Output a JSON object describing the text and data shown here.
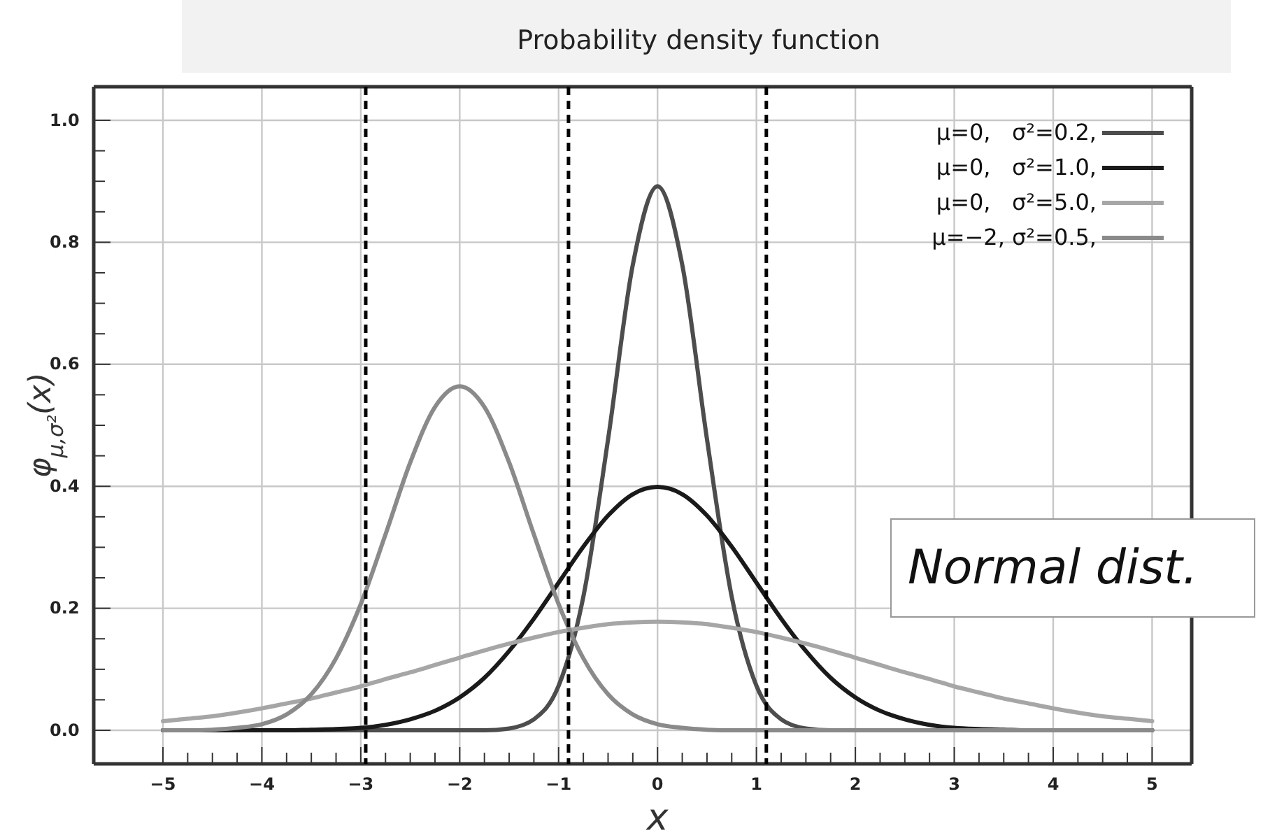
{
  "chart_data": {
    "type": "line",
    "title": "Probability density function",
    "xlabel": "x",
    "ylabel": "φ$_{μ,σ²}$(x)",
    "annotations": [
      "Normal dist."
    ],
    "x": [
      -5,
      -4.75,
      -4.5,
      -4.25,
      -4,
      -3.75,
      -3.5,
      -3.25,
      -3,
      -2.75,
      -2.5,
      -2.25,
      -2,
      -1.75,
      -1.5,
      -1.25,
      -1,
      -0.75,
      -0.5,
      -0.25,
      0,
      0.25,
      0.5,
      0.75,
      1,
      1.25,
      1.5,
      1.75,
      2,
      2.25,
      2.5,
      2.75,
      3,
      3.25,
      3.5,
      3.75,
      4,
      4.25,
      4.5,
      4.75,
      5
    ],
    "series": [
      {
        "name": "μ=0,   σ²=0.2,",
        "color": "#4d4d4d",
        "values": [
          0,
          0,
          0,
          0,
          0,
          0,
          0,
          0,
          0,
          0,
          0,
          0,
          0,
          0,
          0.003,
          0.018,
          0.073,
          0.219,
          0.477,
          0.763,
          0.892,
          0.763,
          0.477,
          0.219,
          0.073,
          0.018,
          0.003,
          0,
          0,
          0,
          0,
          0,
          0,
          0,
          0,
          0,
          0,
          0,
          0,
          0,
          0
        ]
      },
      {
        "name": "μ=0,   σ²=1.0,",
        "color": "#1a1a1a",
        "values": [
          0,
          0,
          0,
          0,
          0,
          0,
          0.001,
          0.002,
          0.004,
          0.009,
          0.018,
          0.032,
          0.054,
          0.086,
          0.13,
          0.183,
          0.242,
          0.301,
          0.352,
          0.387,
          0.399,
          0.387,
          0.352,
          0.301,
          0.242,
          0.183,
          0.13,
          0.086,
          0.054,
          0.032,
          0.018,
          0.009,
          0.004,
          0.002,
          0.001,
          0,
          0,
          0,
          0,
          0,
          0
        ]
      },
      {
        "name": "μ=0,   σ²=5.0,",
        "color": "#a6a6a6",
        "values": [
          0.015,
          0.019,
          0.023,
          0.029,
          0.036,
          0.044,
          0.052,
          0.062,
          0.072,
          0.084,
          0.095,
          0.107,
          0.119,
          0.131,
          0.142,
          0.152,
          0.161,
          0.168,
          0.174,
          0.177,
          0.178,
          0.177,
          0.174,
          0.168,
          0.161,
          0.152,
          0.142,
          0.131,
          0.119,
          0.107,
          0.095,
          0.084,
          0.072,
          0.062,
          0.052,
          0.044,
          0.036,
          0.029,
          0.023,
          0.019,
          0.015
        ]
      },
      {
        "name": "μ=−2, σ²=0.5,",
        "color": "#8a8a8a",
        "values": [
          0,
          0,
          0.001,
          0.004,
          0.01,
          0.026,
          0.059,
          0.118,
          0.207,
          0.321,
          0.439,
          0.53,
          0.564,
          0.53,
          0.439,
          0.321,
          0.207,
          0.118,
          0.059,
          0.026,
          0.01,
          0.004,
          0.001,
          0,
          0,
          0,
          0,
          0,
          0,
          0,
          0,
          0,
          0,
          0,
          0,
          0,
          0,
          0,
          0,
          0,
          0
        ]
      }
    ],
    "xlim": [
      -5.7,
      5.4
    ],
    "ylim": [
      -0.055,
      1.055
    ],
    "xticks": [
      {
        "value": -5,
        "label": "−5"
      },
      {
        "value": -4.75,
        "label": null
      },
      {
        "value": -4.5,
        "label": null
      },
      {
        "value": -4.25,
        "label": null
      },
      {
        "value": -4,
        "label": "−4"
      },
      {
        "value": -3.75,
        "label": null
      },
      {
        "value": -3.5,
        "label": null
      },
      {
        "value": -3.25,
        "label": null
      },
      {
        "value": -3,
        "label": "−3"
      },
      {
        "value": -2.75,
        "label": null
      },
      {
        "value": -2.5,
        "label": null
      },
      {
        "value": -2.25,
        "label": null
      },
      {
        "value": -2,
        "label": "−2"
      },
      {
        "value": -1.75,
        "label": null
      },
      {
        "value": -1.5,
        "label": null
      },
      {
        "value": -1.25,
        "label": null
      },
      {
        "value": -1,
        "label": "−1"
      },
      {
        "value": -0.75,
        "label": null
      },
      {
        "value": -0.5,
        "label": null
      },
      {
        "value": -0.25,
        "label": null
      },
      0,
      {
        "value": 0.25,
        "label": null
      },
      {
        "value": 0.5,
        "label": null
      },
      {
        "value": 0.75,
        "label": null
      },
      1,
      {
        "value": 1.25,
        "label": null
      },
      {
        "value": 1.5,
        "label": null
      },
      {
        "value": 1.75,
        "label": null
      },
      2,
      {
        "value": 2.25,
        "label": null
      },
      {
        "value": 2.5,
        "label": null
      },
      {
        "value": 2.75,
        "label": null
      },
      3,
      {
        "value": 3.25,
        "label": null
      },
      {
        "value": 3.5,
        "label": null
      },
      {
        "value": 3.75,
        "label": null
      },
      4,
      {
        "value": 4.25,
        "label": null
      },
      {
        "value": 4.5,
        "label": null
      },
      {
        "value": 4.75,
        "label": null
      },
      5
    ],
    "yticks": [
      {
        "value": 0,
        "label": "0.0"
      },
      {
        "value": 0.05,
        "label": null
      },
      {
        "value": 0.1,
        "label": null
      },
      {
        "value": 0.15,
        "label": null
      },
      0.2,
      {
        "value": 0.25,
        "label": null
      },
      {
        "value": 0.3,
        "label": null
      },
      {
        "value": 0.35,
        "label": null
      },
      0.4,
      {
        "value": 0.45,
        "label": null
      },
      {
        "value": 0.5,
        "label": null
      },
      {
        "value": 0.55,
        "label": null
      },
      0.6,
      {
        "value": 0.65,
        "label": null
      },
      {
        "value": 0.7,
        "label": null
      },
      {
        "value": 0.75,
        "label": null
      },
      0.8,
      {
        "value": 0.85,
        "label": null
      },
      {
        "value": 0.9,
        "label": null
      },
      {
        "value": 0.95,
        "label": null
      },
      {
        "value": 1,
        "label": "1.0"
      }
    ],
    "ref_lines": [
      {
        "axis": "x",
        "value": -2.95,
        "color": "#000000",
        "line_style": "dashed"
      },
      {
        "axis": "x",
        "value": -0.9,
        "color": "#000000",
        "line_style": "dashed"
      },
      {
        "axis": "x",
        "value": 1.1,
        "color": "#000000",
        "line_style": "dashed"
      }
    ],
    "grid": true,
    "legend": "top right",
    "line_style": "solid",
    "marker": "none"
  }
}
